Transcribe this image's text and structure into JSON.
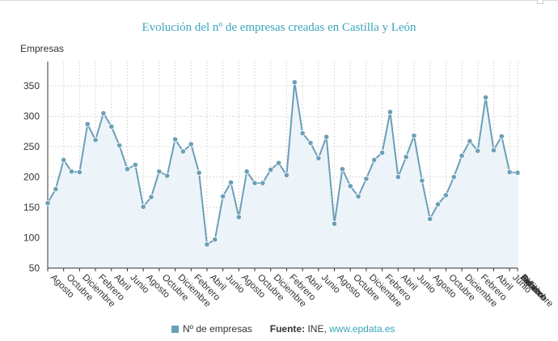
{
  "chart_data": {
    "type": "area",
    "title": "Evolución del nº de empresas creadas en Castilla y León",
    "ylabel": "Empresas",
    "xlabel": "",
    "ylim": [
      50,
      390
    ],
    "yticks": [
      50,
      100,
      150,
      200,
      250,
      300,
      350
    ],
    "grid": true,
    "legend": "bottom",
    "colors": {
      "line": "#6b9fb8",
      "fill": "#edf4f9",
      "title": "#3aa6bd"
    },
    "x_tick_labels": [
      "Agosto",
      "Octubre",
      "Diciembre",
      "Febrero",
      "Abril",
      "Junio",
      "Agosto",
      "Octubre",
      "Diciembre",
      "Febrero",
      "Abril",
      "Junio",
      "Agosto",
      "Octubre",
      "Diciembre",
      "Febrero",
      "Abril",
      "Junio",
      "Agosto",
      "Octubre",
      "Diciembre",
      "Febrero",
      "Abril",
      "Junio",
      "Agosto",
      "Octubre",
      "Diciembre",
      "Febrero",
      "Abril",
      "Junio",
      "Agosto",
      "Octubre",
      "Diciembre",
      "Febrero",
      "Abril",
      "Julio"
    ],
    "series": [
      {
        "name": "Nº de empresas",
        "values": [
          157,
          180,
          228,
          209,
          208,
          287,
          261,
          305,
          283,
          252,
          213,
          220,
          151,
          167,
          209,
          202,
          262,
          242,
          254,
          207,
          89,
          97,
          168,
          191,
          134,
          209,
          190,
          190,
          212,
          223,
          203,
          356,
          272,
          256,
          231,
          266,
          123,
          213,
          185,
          168,
          197,
          228,
          240,
          307,
          200,
          233,
          268,
          194,
          131,
          155,
          170,
          200,
          235,
          259,
          243,
          331,
          244,
          267,
          208,
          207
        ]
      }
    ]
  },
  "legend": {
    "series_label": "Nº de empresas",
    "source_label": "Fuente:",
    "source_text": " INE, ",
    "source_link": "www.epdata.es"
  }
}
